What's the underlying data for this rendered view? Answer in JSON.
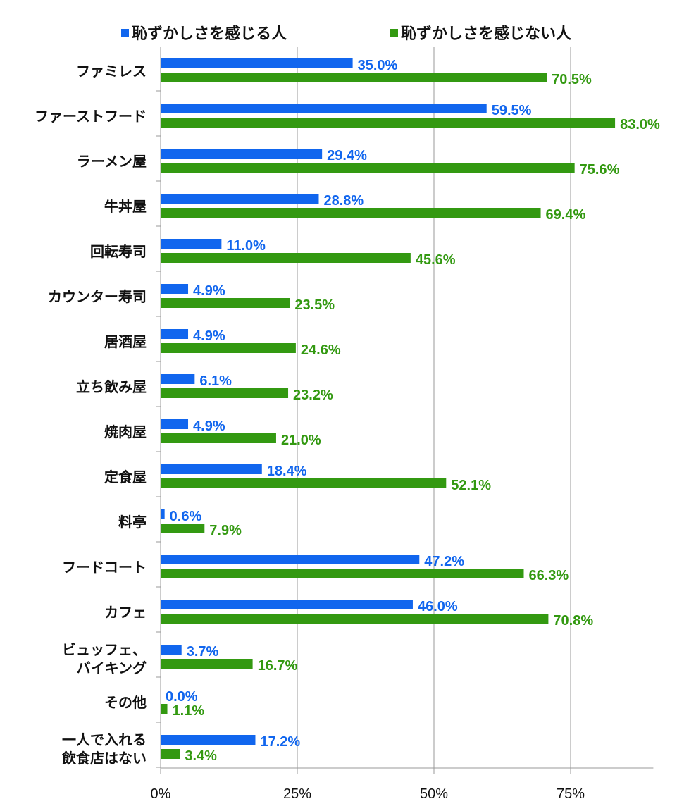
{
  "chart_data": {
    "type": "bar",
    "orientation": "horizontal",
    "title": "",
    "xlabel": "",
    "ylabel": "",
    "xlim": [
      0,
      90
    ],
    "grid": true,
    "legend_position": "top",
    "x_ticks": [
      "0%",
      "25%",
      "50%",
      "75%"
    ],
    "x_tick_values": [
      0,
      25,
      50,
      75
    ],
    "categories": [
      [
        "ファミレス"
      ],
      [
        "ファーストフード"
      ],
      [
        "ラーメン屋"
      ],
      [
        "牛丼屋"
      ],
      [
        "回転寿司"
      ],
      [
        "カウンター寿司"
      ],
      [
        "居酒屋"
      ],
      [
        "立ち飲み屋"
      ],
      [
        "焼肉屋"
      ],
      [
        "定食屋"
      ],
      [
        "料亭"
      ],
      [
        "フードコート"
      ],
      [
        "カフェ"
      ],
      [
        "ビュッフェ、",
        "バイキング"
      ],
      [
        "その他"
      ],
      [
        "一人で入れる",
        "飲食店はない"
      ]
    ],
    "series": [
      {
        "name": "恥ずかしさを感じる人",
        "color": "#1166ee",
        "values": [
          35.0,
          59.5,
          29.4,
          28.8,
          11.0,
          4.9,
          4.9,
          6.1,
          4.9,
          18.4,
          0.6,
          47.2,
          46.0,
          3.7,
          0.0,
          17.2
        ],
        "labels": [
          "35.0%",
          "59.5%",
          "29.4%",
          "28.8%",
          "11.0%",
          "4.9%",
          "4.9%",
          "6.1%",
          "4.9%",
          "18.4%",
          "0.6%",
          "47.2%",
          "46.0%",
          "3.7%",
          "0.0%",
          "17.2%"
        ]
      },
      {
        "name": "恥ずかしさを感じない人",
        "color": "#339911",
        "values": [
          70.5,
          83.0,
          75.6,
          69.4,
          45.6,
          23.5,
          24.6,
          23.2,
          21.0,
          52.1,
          7.9,
          66.3,
          70.8,
          16.7,
          1.1,
          3.4
        ],
        "labels": [
          "70.5%",
          "83.0%",
          "75.6%",
          "69.4%",
          "45.6%",
          "23.5%",
          "24.6%",
          "23.2%",
          "21.0%",
          "52.1%",
          "7.9%",
          "66.3%",
          "70.8%",
          "16.7%",
          "1.1%",
          "3.4%"
        ]
      }
    ]
  }
}
